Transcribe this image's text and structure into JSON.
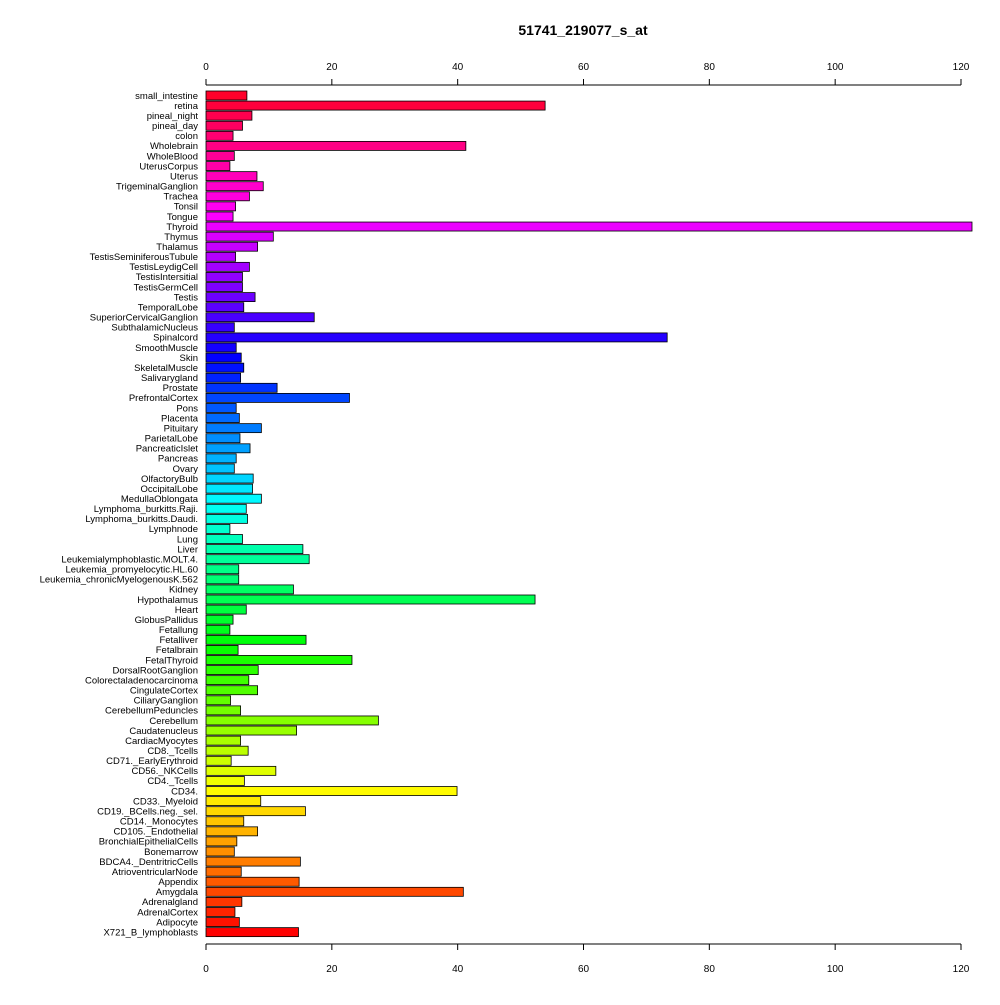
{
  "chart_data": {
    "type": "bar",
    "orientation": "horizontal",
    "title": "51741_219077_s_at",
    "xlabel": "",
    "ylabel": "",
    "xlim": [
      0,
      120
    ],
    "x_ticks": [
      0,
      20,
      40,
      60,
      80,
      100,
      120
    ],
    "x_axis_position": "top and bottom",
    "grid": false,
    "legend": "none",
    "categories": [
      "small_intestine",
      "retina",
      "pineal_night",
      "pineal_day",
      "colon",
      "Wholebrain",
      "WholeBlood",
      "UterusCorpus",
      "Uterus",
      "TrigeminalGanglion",
      "Trachea",
      "Tonsil",
      "Tongue",
      "Thyroid",
      "Thymus",
      "Thalamus",
      "TestisSeminiferousTubule",
      "TestisLeydigCell",
      "TestisIntersitial",
      "TestisGermCell",
      "Testis",
      "TemporalLobe",
      "SuperiorCervicalGanglion",
      "SubthalamicNucleus",
      "Spinalcord",
      "SmoothMuscle",
      "Skin",
      "SkeletalMuscle",
      "Salivarygland",
      "Prostate",
      "PrefrontalCortex",
      "Pons",
      "Placenta",
      "Pituitary",
      "ParietalLobe",
      "PancreaticIslet",
      "Pancreas",
      "Ovary",
      "OlfactoryBulb",
      "OccipitalLobe",
      "MedullaOblongata",
      "Lymphoma_burkitts.Raji.",
      "Lymphoma_burkitts.Daudi.",
      "Lymphnode",
      "Lung",
      "Liver",
      "Leukemialymphoblastic.MOLT.4.",
      "Leukemia_promyelocytic.HL.60",
      "Leukemia_chronicMyelogenousK.562",
      "Kidney",
      "Hypothalamus",
      "Heart",
      "GlobusPallidus",
      "Fetallung",
      "Fetalliver",
      "Fetalbrain",
      "FetalThyroid",
      "DorsalRootGanglion",
      "Colorectaladenocarcinoma",
      "CingulateCortex",
      "CiliaryGanglion",
      "CerebellumPeduncles",
      "Cerebellum",
      "Caudatenucleus",
      "CardiacMyocytes",
      "CD8._Tcells",
      "CD71._EarlyErythroid",
      "CD56._NKCells",
      "CD4._Tcells",
      "CD34.",
      "CD33._Myeloid",
      "CD19._BCells.neg._sel.",
      "CD14._Monocytes",
      "CD105._Endothelial",
      "BronchialEpithelialCells",
      "Bonemarrow",
      "BDCA4._DentritricCells",
      "AtrioventricularNode",
      "Appendix",
      "Amygdala",
      "Adrenalgland",
      "AdrenalCortex",
      "Adipocyte",
      "X721_B_lymphoblasts"
    ],
    "values": [
      6.5,
      53.9,
      7.3,
      5.8,
      4.3,
      41.3,
      4.5,
      3.8,
      8.1,
      9.1,
      6.9,
      4.7,
      4.3,
      125.0,
      10.7,
      8.2,
      4.7,
      6.9,
      5.8,
      5.8,
      7.8,
      6.0,
      17.2,
      4.5,
      73.3,
      4.8,
      5.6,
      6.0,
      5.5,
      11.3,
      22.8,
      4.8,
      5.3,
      8.8,
      5.4,
      7.0,
      4.8,
      4.5,
      7.5,
      7.4,
      8.8,
      6.4,
      6.6,
      3.8,
      5.8,
      15.4,
      16.4,
      5.2,
      5.2,
      13.9,
      52.3,
      6.4,
      4.3,
      3.8,
      15.9,
      5.1,
      23.2,
      8.3,
      6.8,
      8.2,
      3.9,
      5.5,
      27.4,
      14.4,
      5.5,
      6.7,
      4.0,
      11.1,
      6.1,
      39.9,
      8.7,
      15.8,
      6.0,
      8.2,
      4.9,
      4.5,
      15.0,
      5.6,
      14.8,
      40.9,
      5.7,
      4.6,
      5.3,
      14.7
    ]
  }
}
